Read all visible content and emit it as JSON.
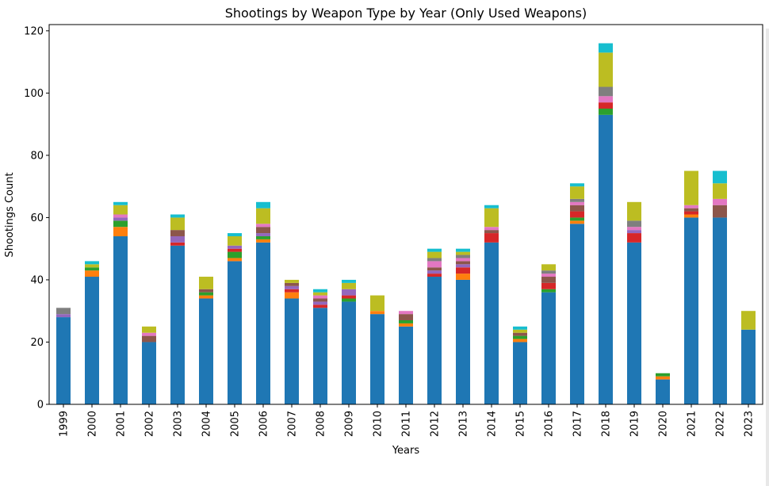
{
  "chart_data": {
    "type": "bar",
    "stacked": true,
    "title": "Shootings by Weapon Type by Year (Only Used Weapons)",
    "xlabel": "Years",
    "ylabel": "Shootings Count",
    "ylim": [
      0,
      122
    ],
    "yticks": [
      0,
      20,
      40,
      60,
      80,
      100,
      120
    ],
    "grid": false,
    "legend": "none",
    "categories": [
      "1999",
      "2000",
      "2001",
      "2002",
      "2003",
      "2004",
      "2005",
      "2006",
      "2007",
      "2008",
      "2009",
      "2010",
      "2011",
      "2012",
      "2013",
      "2014",
      "2015",
      "2016",
      "2017",
      "2018",
      "2019",
      "2020",
      "2021",
      "2022",
      "2023"
    ],
    "series": [
      {
        "color": "#1f77b4",
        "values": [
          28,
          41,
          54,
          20,
          51,
          34,
          46,
          52,
          34,
          31,
          33,
          29,
          25,
          41,
          40,
          52,
          20,
          36,
          58,
          93,
          52,
          8,
          60,
          60,
          24
        ]
      },
      {
        "color": "#ff7f0e",
        "values": [
          0,
          2,
          3,
          0,
          0,
          1,
          1,
          1,
          2,
          0,
          0,
          1,
          1,
          0,
          2,
          0,
          1,
          0,
          1,
          0,
          0,
          1,
          1,
          0,
          0
        ]
      },
      {
        "color": "#2ca02c",
        "values": [
          0,
          1,
          2,
          0,
          0,
          1,
          2,
          1,
          0,
          0,
          1,
          0,
          1,
          0,
          0,
          0,
          1,
          1,
          1,
          2,
          0,
          1,
          0,
          0,
          0
        ]
      },
      {
        "color": "#d62728",
        "values": [
          0,
          0,
          0,
          0,
          1,
          0,
          1,
          0,
          1,
          1,
          1,
          0,
          0,
          1,
          2,
          3,
          0,
          2,
          2,
          2,
          3,
          0,
          1,
          0,
          0
        ]
      },
      {
        "color": "#9467bd",
        "values": [
          1,
          0,
          1,
          0,
          2,
          0,
          1,
          1,
          1,
          1,
          2,
          0,
          0,
          1,
          1,
          0,
          0,
          0,
          0,
          0,
          1,
          0,
          0,
          0,
          0
        ]
      },
      {
        "color": "#8c564b",
        "values": [
          0,
          0,
          0,
          2,
          2,
          1,
          0,
          2,
          1,
          1,
          0,
          0,
          2,
          1,
          1,
          1,
          1,
          2,
          2,
          0,
          0,
          0,
          1,
          4,
          0
        ]
      },
      {
        "color": "#e377c2",
        "values": [
          0,
          0,
          1,
          1,
          0,
          0,
          0,
          1,
          0,
          1,
          0,
          0,
          1,
          2,
          1,
          1,
          0,
          1,
          1,
          2,
          1,
          0,
          1,
          2,
          0
        ]
      },
      {
        "color": "#7f7f7f",
        "values": [
          2,
          0,
          0,
          0,
          0,
          0,
          0,
          0,
          0,
          0,
          0,
          0,
          0,
          1,
          1,
          0,
          0,
          1,
          1,
          3,
          2,
          0,
          0,
          0,
          0
        ]
      },
      {
        "color": "#bcbd22",
        "values": [
          0,
          1,
          3,
          2,
          4,
          4,
          3,
          5,
          1,
          1,
          2,
          5,
          0,
          2,
          1,
          6,
          1,
          2,
          4,
          11,
          6,
          0,
          11,
          5,
          6
        ]
      },
      {
        "color": "#17becf",
        "values": [
          0,
          1,
          1,
          0,
          1,
          0,
          1,
          2,
          0,
          1,
          1,
          0,
          0,
          1,
          1,
          1,
          1,
          0,
          1,
          3,
          0,
          0,
          0,
          4,
          0
        ]
      }
    ]
  }
}
